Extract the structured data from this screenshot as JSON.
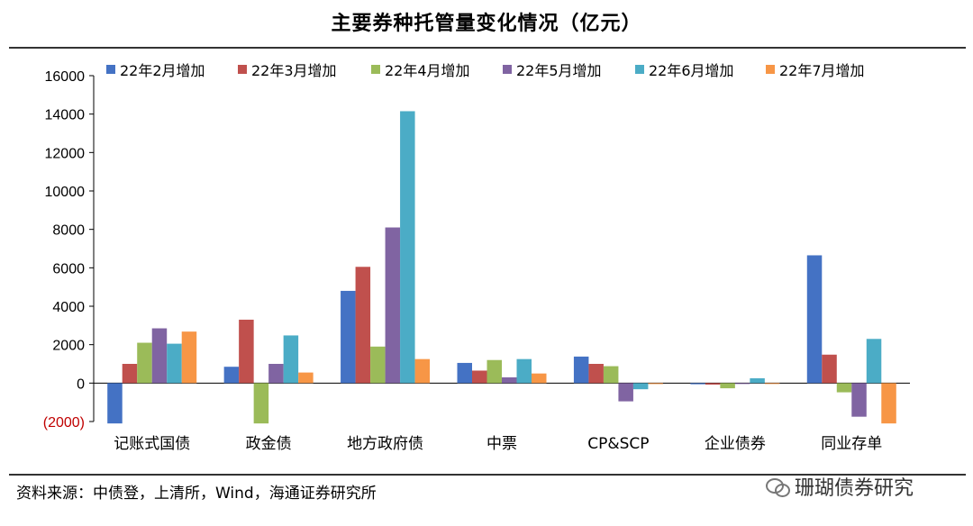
{
  "title": "主要券种托管量变化情况（亿元）",
  "source": "资料来源：中债登，上清所，Wind，海通证券研究所",
  "watermark": "珊瑚债券研究",
  "chart_data": {
    "type": "bar",
    "categories": [
      "记账式国债",
      "政金债",
      "地方政府债",
      "中票",
      "CP&SCP",
      "企业债券",
      "同业存单"
    ],
    "series": [
      {
        "name": "22年2月增加",
        "color": "#4472C4",
        "values": [
          -2100,
          850,
          4800,
          1050,
          1380,
          -60,
          6650
        ]
      },
      {
        "name": "22年3月增加",
        "color": "#C0504D",
        "values": [
          1000,
          3300,
          6050,
          650,
          1000,
          -80,
          1480
        ]
      },
      {
        "name": "22年4月增加",
        "color": "#9BBB59",
        "values": [
          2100,
          -2100,
          1900,
          1200,
          880,
          -270,
          -480
        ]
      },
      {
        "name": "22年5月增加",
        "color": "#8064A2",
        "values": [
          2850,
          1000,
          8100,
          300,
          -950,
          -30,
          -1750
        ]
      },
      {
        "name": "22年6月增加",
        "color": "#4BACC6",
        "values": [
          2050,
          2480,
          14150,
          1250,
          -320,
          250,
          2300
        ]
      },
      {
        "name": "22年7月增加",
        "color": "#F79646",
        "values": [
          2680,
          550,
          1250,
          500,
          -50,
          -20,
          -2100
        ]
      }
    ],
    "ylim": [
      -2000,
      16000
    ],
    "yticks": [
      -2000,
      0,
      2000,
      4000,
      6000,
      8000,
      10000,
      12000,
      14000,
      16000
    ],
    "ytick_labels": [
      "(2000)",
      "0",
      "2000",
      "4000",
      "6000",
      "8000",
      "10000",
      "12000",
      "14000",
      "16000"
    ],
    "negative_tick_color": "#C00000",
    "legend_position": "top",
    "grid": false
  }
}
